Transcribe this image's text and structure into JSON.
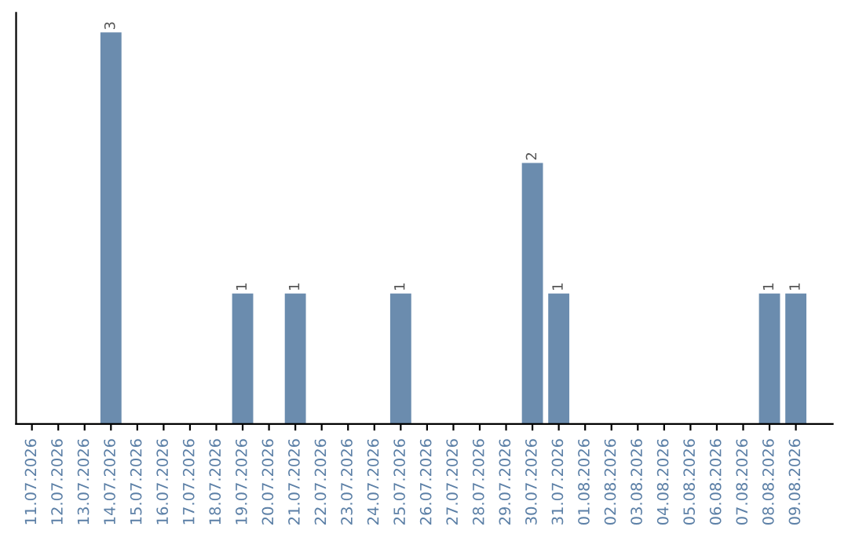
{
  "chart_data": {
    "type": "bar",
    "categories": [
      "11.07.2026",
      "12.07.2026",
      "13.07.2026",
      "14.07.2026",
      "15.07.2026",
      "16.07.2026",
      "17.07.2026",
      "18.07.2026",
      "19.07.2026",
      "20.07.2026",
      "21.07.2026",
      "22.07.2026",
      "23.07.2026",
      "24.07.2026",
      "25.07.2026",
      "26.07.2026",
      "27.07.2026",
      "28.07.2026",
      "29.07.2026",
      "30.07.2026",
      "31.07.2026",
      "01.08.2026",
      "02.08.2026",
      "03.08.2026",
      "04.08.2026",
      "05.08.2026",
      "06.08.2026",
      "07.08.2026",
      "08.08.2026",
      "09.08.2026"
    ],
    "values": [
      0,
      0,
      0,
      3,
      0,
      0,
      0,
      0,
      1,
      0,
      1,
      0,
      0,
      0,
      1,
      0,
      0,
      0,
      0,
      2,
      1,
      0,
      0,
      0,
      0,
      0,
      0,
      0,
      1,
      1
    ],
    "value_labels": [
      null,
      null,
      null,
      "3",
      null,
      null,
      null,
      null,
      "1",
      null,
      "1",
      null,
      null,
      null,
      "1",
      null,
      null,
      null,
      null,
      "2",
      "1",
      null,
      null,
      null,
      null,
      null,
      null,
      null,
      "1",
      "1"
    ],
    "color": "#6b8cae",
    "tick_labels": "x",
    "grid": false
  }
}
